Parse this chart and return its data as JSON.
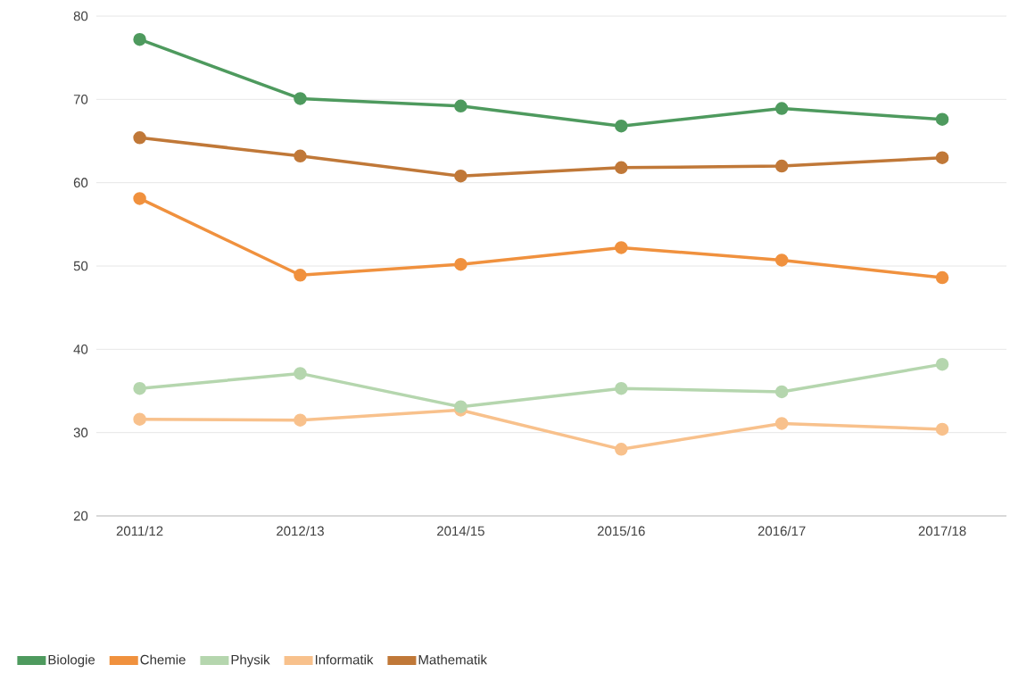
{
  "chart_data": {
    "type": "line",
    "categories": [
      "2011/12",
      "2012/13",
      "2014/15",
      "2015/16",
      "2016/17",
      "2017/18"
    ],
    "series": [
      {
        "name": "Biologie",
        "color": "#4e9a5e",
        "values": [
          77.2,
          70.1,
          69.2,
          66.8,
          68.9,
          67.6
        ]
      },
      {
        "name": "Chemie",
        "color": "#f0913e",
        "values": [
          58.1,
          48.9,
          50.2,
          52.2,
          50.7,
          48.6
        ]
      },
      {
        "name": "Physik",
        "color": "#b5d6ae",
        "values": [
          35.3,
          37.1,
          33.1,
          35.3,
          34.9,
          38.2
        ]
      },
      {
        "name": "Informatik",
        "color": "#f8c18c",
        "values": [
          31.6,
          31.5,
          32.7,
          28.0,
          31.1,
          30.4
        ]
      },
      {
        "name": "Mathematik",
        "color": "#c07838",
        "values": [
          65.4,
          63.2,
          60.8,
          61.8,
          62.0,
          63.0
        ]
      }
    ],
    "ylim": [
      20,
      80
    ],
    "yticks": [
      20,
      30,
      40,
      50,
      60,
      70,
      80
    ],
    "grid": "y",
    "legend": "bottom left",
    "marker": "circle",
    "line_style": "solid"
  }
}
